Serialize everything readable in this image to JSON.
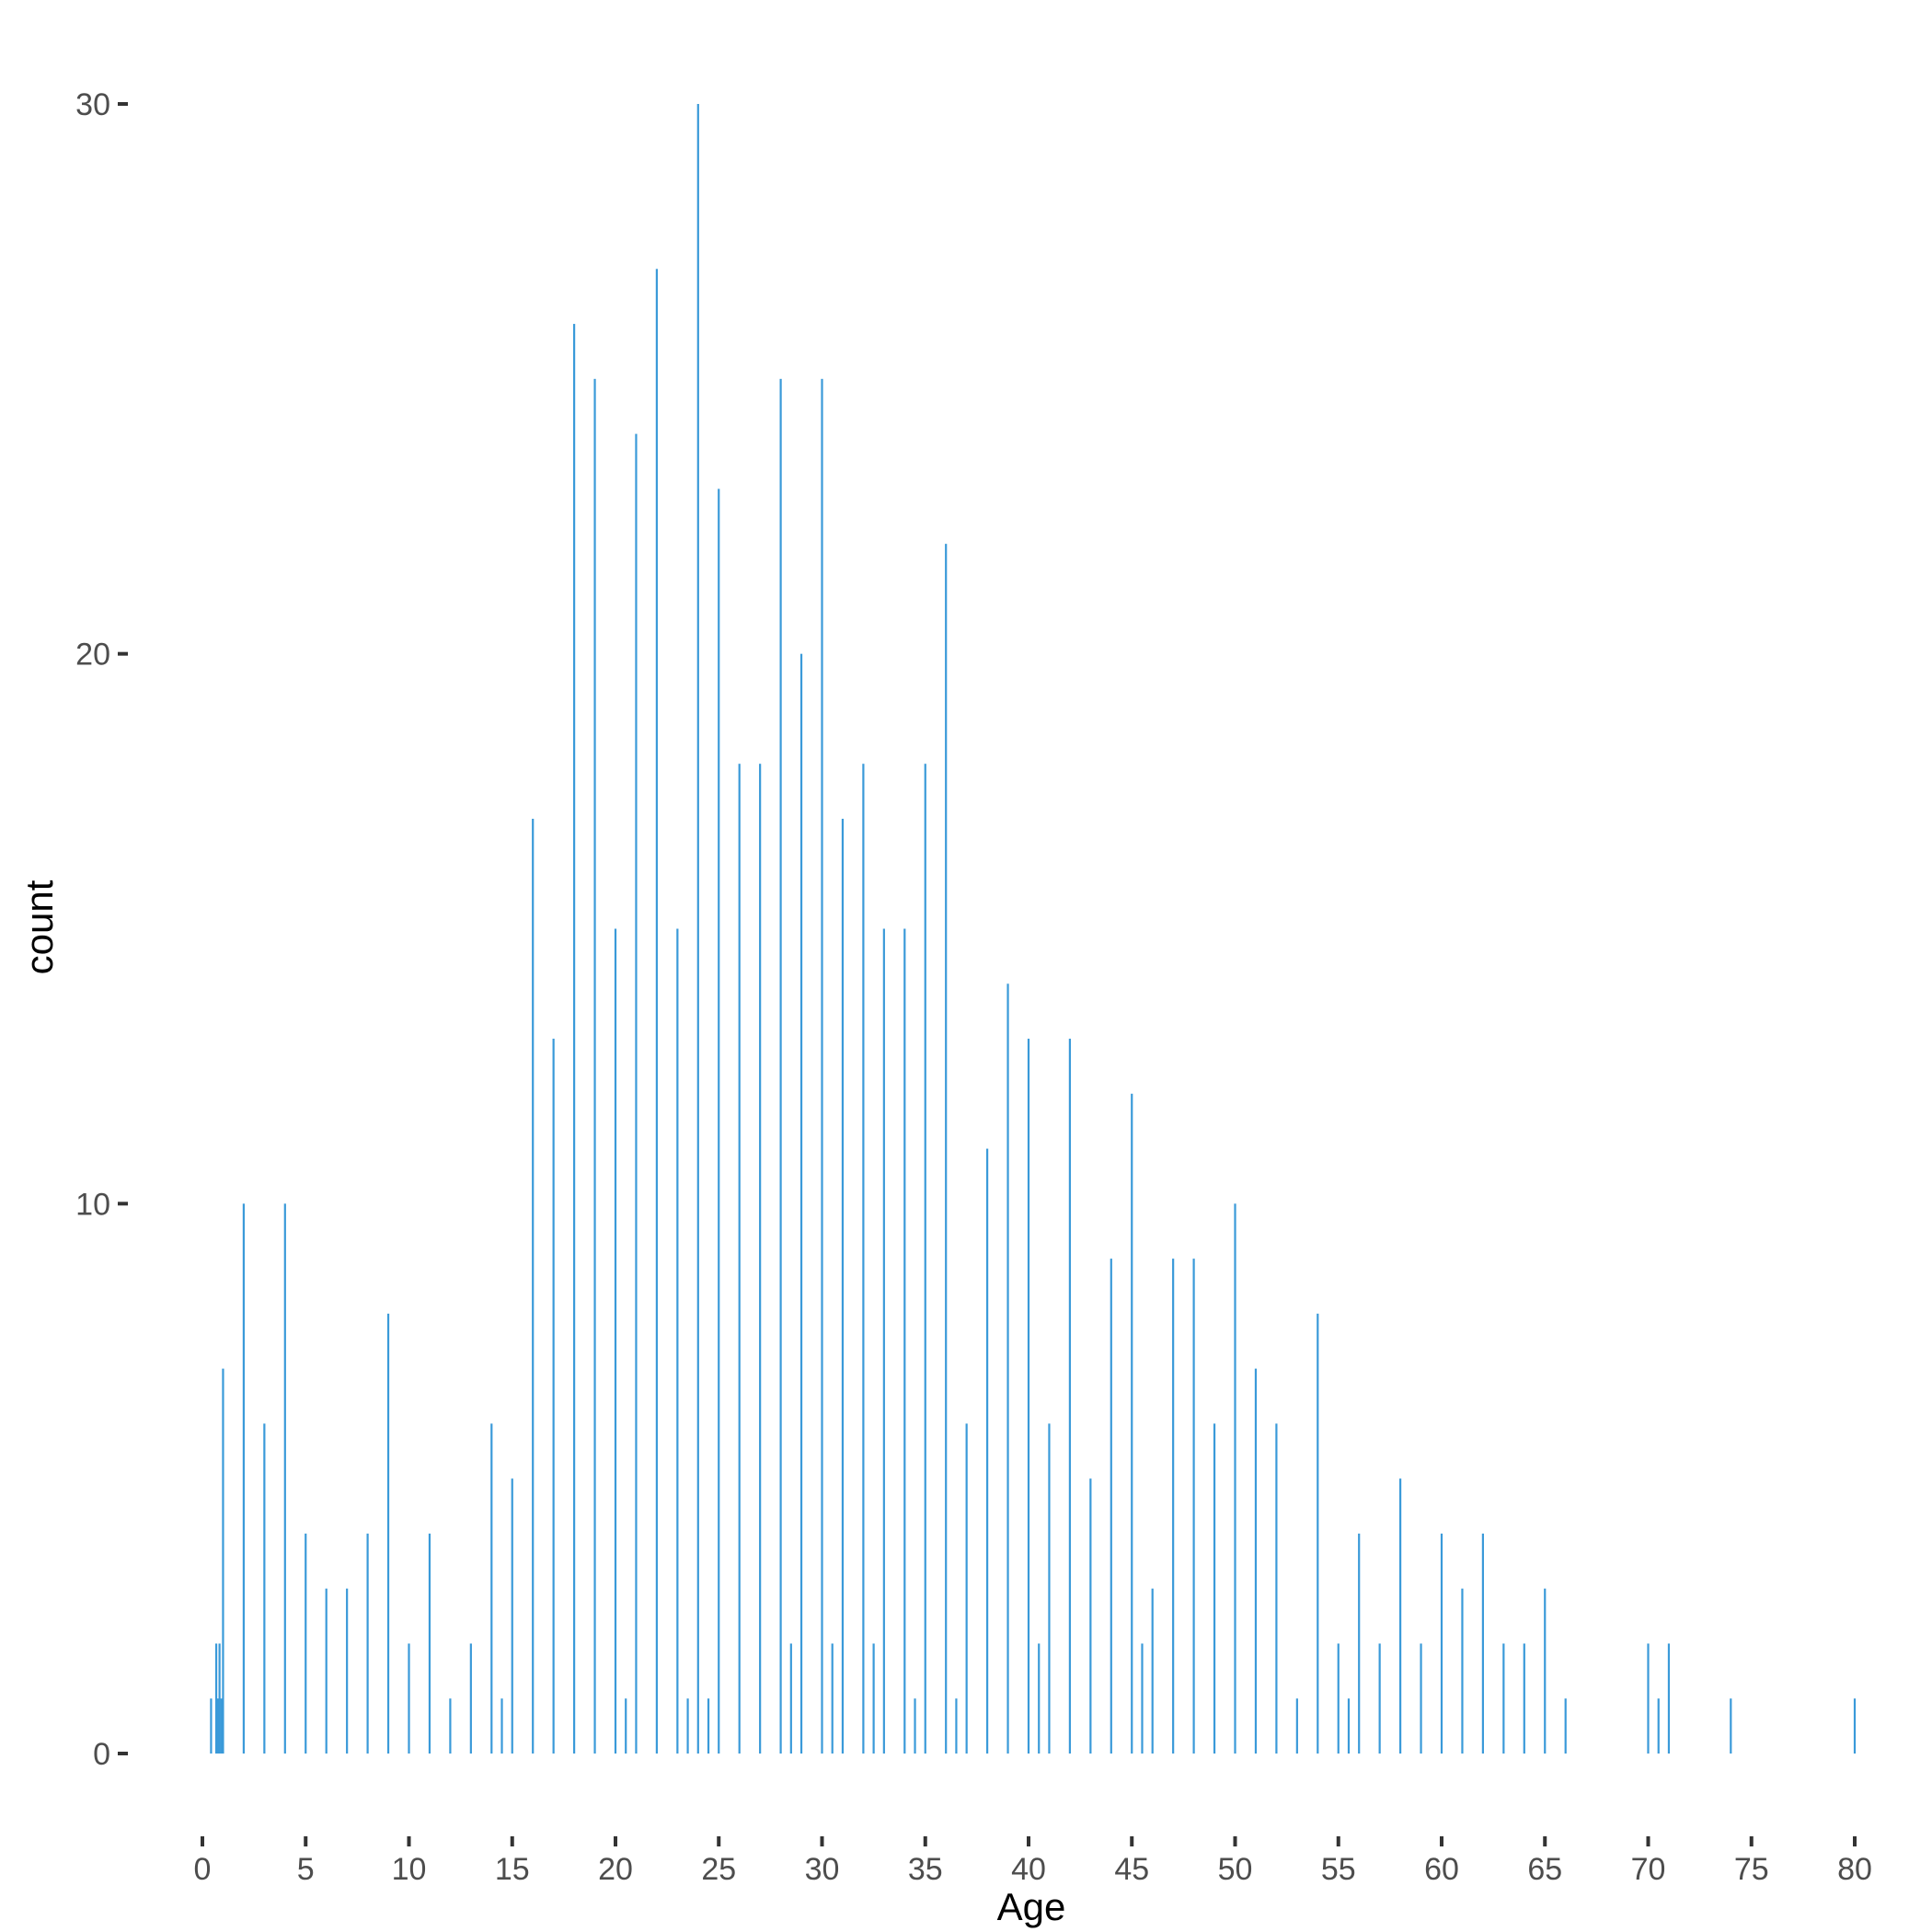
{
  "chart_data": {
    "type": "bar",
    "xlabel": "Age",
    "ylabel": "count",
    "xlim": [
      0,
      80
    ],
    "ylim": [
      0,
      30
    ],
    "x_ticks": [
      0,
      5,
      10,
      15,
      20,
      25,
      30,
      35,
      40,
      45,
      50,
      55,
      60,
      65,
      70,
      75,
      80
    ],
    "y_ticks": [
      0,
      10,
      20,
      30
    ],
    "grid": false,
    "bar_color": "#3a9ad9",
    "x": [
      0.42,
      0.67,
      0.75,
      0.83,
      0.92,
      1,
      2,
      3,
      4,
      5,
      6,
      7,
      8,
      9,
      10,
      11,
      12,
      13,
      14,
      14.5,
      15,
      16,
      17,
      18,
      19,
      20,
      20.5,
      21,
      22,
      23,
      23.5,
      24,
      24.5,
      25,
      26,
      27,
      28,
      28.5,
      29,
      30,
      30.5,
      31,
      32,
      32.5,
      33,
      34,
      34.5,
      35,
      36,
      36.5,
      37,
      38,
      39,
      40,
      40.5,
      41,
      42,
      43,
      44,
      45,
      45.5,
      46,
      47,
      48,
      49,
      50,
      51,
      52,
      53,
      54,
      55,
      55.5,
      56,
      57,
      58,
      59,
      60,
      61,
      62,
      63,
      64,
      65,
      66,
      70,
      70.5,
      71,
      74,
      80
    ],
    "values": [
      1,
      2,
      1,
      2,
      1,
      7,
      10,
      6,
      10,
      4,
      3,
      3,
      4,
      8,
      2,
      4,
      1,
      2,
      6,
      1,
      5,
      17,
      13,
      26,
      25,
      15,
      1,
      24,
      27,
      15,
      1,
      30,
      1,
      23,
      18,
      18,
      25,
      2,
      20,
      25,
      2,
      17,
      18,
      2,
      15,
      15,
      1,
      18,
      22,
      1,
      6,
      11,
      14,
      13,
      2,
      6,
      13,
      5,
      9,
      12,
      2,
      3,
      9,
      9,
      6,
      10,
      7,
      6,
      1,
      8,
      2,
      1,
      4,
      2,
      5,
      2,
      4,
      3,
      4,
      2,
      2,
      3,
      1,
      2,
      1,
      2,
      1,
      1
    ]
  }
}
